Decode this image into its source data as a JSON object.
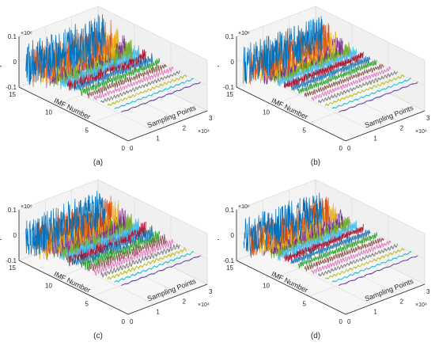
{
  "figure": {
    "panel_labels": [
      "(a)",
      "(b)",
      "(c)",
      "(d)"
    ],
    "colors": [
      "#0072BD",
      "#D95319",
      "#EDB120",
      "#7E2F8E",
      "#77AC30",
      "#4DBEEE",
      "#A2142F",
      "#1F77B4",
      "#2CA02C",
      "#8C564B",
      "#E377C2",
      "#7F7F7F",
      "#BCBD22",
      "#17BECF",
      "#5B3FA8"
    ]
  },
  "chart_data": [
    {
      "type": "line",
      "panel_label": "(a)",
      "ylabel": "IMF Number",
      "xlabel": "Sampling Points",
      "zlabel": "Amplitude",
      "x_exponent": "×10⁴",
      "z_exponent": "×10⁶",
      "x_ticks": [
        "0",
        "1",
        "2",
        "3"
      ],
      "y_ticks": [
        "0",
        "5",
        "10",
        "15"
      ],
      "z_ticks": [
        "-0.1",
        "0",
        "0.1"
      ],
      "xlim": [
        0,
        30000
      ],
      "ylim": [
        0,
        15
      ],
      "zlim": [
        -0.1,
        0.1
      ],
      "grid": true,
      "imf_count": 15,
      "amplitudes": [
        0.09,
        0.075,
        0.06,
        0.05,
        0.042,
        0.035,
        0.028,
        0.022,
        0.018,
        0.014,
        0.011,
        0.008,
        0.006,
        0.004,
        0.003
      ],
      "sampling_points": 30000
    },
    {
      "type": "line",
      "panel_label": "(b)",
      "ylabel": "IMF Number",
      "xlabel": "Sampling Points",
      "zlabel": "Amplitude",
      "x_exponent": "×10⁴",
      "z_exponent": "×10⁶",
      "x_ticks": [
        "0",
        "1",
        "2",
        "3"
      ],
      "y_ticks": [
        "0",
        "5",
        "10",
        "15"
      ],
      "z_ticks": [
        "-0.1",
        "0",
        "0.1"
      ],
      "xlim": [
        0,
        30000
      ],
      "ylim": [
        0,
        15
      ],
      "zlim": [
        -0.1,
        0.1
      ],
      "grid": true,
      "imf_count": 15,
      "amplitudes": [
        0.08,
        0.065,
        0.05,
        0.04,
        0.032,
        0.026,
        0.02,
        0.016,
        0.013,
        0.011,
        0.01,
        0.009,
        0.006,
        0.004,
        0.003
      ],
      "sampling_points": 30000
    },
    {
      "type": "line",
      "panel_label": "(c)",
      "ylabel": "IMF Number",
      "xlabel": "Sampling Points",
      "zlabel": "Amplitude",
      "x_exponent": "×10⁴",
      "z_exponent": "×10⁶",
      "x_ticks": [
        "0",
        "1",
        "2",
        "3"
      ],
      "y_ticks": [
        "0",
        "5",
        "10",
        "15"
      ],
      "z_ticks": [
        "-0.1",
        "0",
        "0.1"
      ],
      "xlim": [
        0,
        30000
      ],
      "ylim": [
        0,
        15
      ],
      "zlim": [
        -0.1,
        0.1
      ],
      "grid": true,
      "imf_count": 15,
      "amplitudes": [
        0.085,
        0.07,
        0.06,
        0.05,
        0.045,
        0.04,
        0.035,
        0.03,
        0.026,
        0.022,
        0.018,
        0.012,
        0.008,
        0.005,
        0.003
      ],
      "sampling_points": 30000
    },
    {
      "type": "line",
      "panel_label": "(d)",
      "ylabel": "IMF Number",
      "xlabel": "Sampling Points",
      "zlabel": "Amplitude",
      "x_exponent": "×10⁴",
      "z_exponent": "×10⁶",
      "x_ticks": [
        "0",
        "1",
        "2",
        "3"
      ],
      "y_ticks": [
        "0",
        "5",
        "10",
        "15"
      ],
      "z_ticks": [
        "-0.1",
        "0",
        "0.1"
      ],
      "xlim": [
        0,
        30000
      ],
      "ylim": [
        0,
        15
      ],
      "zlim": [
        -0.1,
        0.1
      ],
      "grid": true,
      "imf_count": 15,
      "amplitudes": [
        0.08,
        0.065,
        0.05,
        0.04,
        0.032,
        0.026,
        0.02,
        0.016,
        0.013,
        0.012,
        0.011,
        0.008,
        0.006,
        0.004,
        0.003
      ],
      "sampling_points": 30000
    }
  ]
}
